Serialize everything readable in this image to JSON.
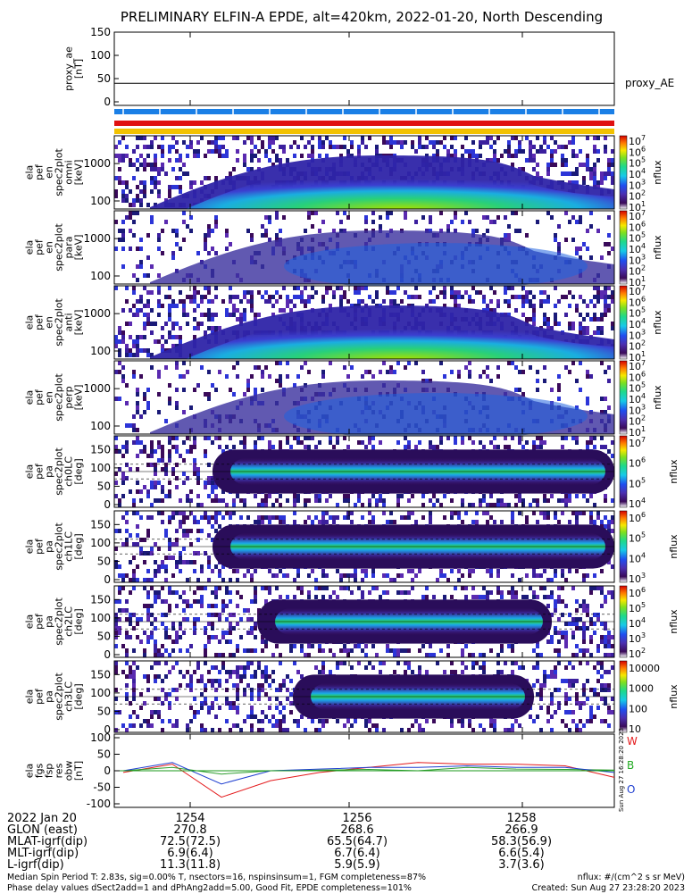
{
  "title": "PRELIMINARY ELFIN-A EPDE, alt=420km, 2022-01-20, North Descending",
  "colors": {
    "bar_blue": "#1a7fe6",
    "bar_red": "#e01010",
    "bar_yellow": "#f2c200",
    "curve_red": "#e41a1c",
    "curve_green": "#2e9e2e",
    "curve_blue": "#1f3fd0",
    "w_label": "#e41a1c",
    "b_label": "#22aa22",
    "o_label": "#1f3fd0"
  },
  "proxy_panel": {
    "ylabel_lines": [
      "proxy_ae",
      "[nT]"
    ],
    "yticks": [
      "150",
      "100",
      "50",
      "0"
    ],
    "legend": "proxy_AE",
    "value": 40
  },
  "spec_panels": [
    {
      "ylabel_lines": [
        "ela",
        "pef",
        "en",
        "spec2plot",
        "omni",
        "[keV]"
      ],
      "yticks": [
        "1000",
        "100"
      ],
      "cbar_ticks": [
        "10^7",
        "10^6",
        "10^5",
        "10^4",
        "10^3",
        "10^2",
        "10^1"
      ],
      "cbar_label": "nflux"
    },
    {
      "ylabel_lines": [
        "ela",
        "pef",
        "en",
        "spec2plot",
        "para",
        "[keV]"
      ],
      "yticks": [
        "1000",
        "100"
      ],
      "cbar_ticks": [
        "10^7",
        "10^6",
        "10^5",
        "10^4",
        "10^3",
        "10^2",
        "10^1"
      ],
      "cbar_label": "nflux"
    },
    {
      "ylabel_lines": [
        "ela",
        "pef",
        "en",
        "spec2plot",
        "anti",
        "[keV]"
      ],
      "yticks": [
        "1000",
        "100"
      ],
      "cbar_ticks": [
        "10^7",
        "10^6",
        "10^5",
        "10^4",
        "10^3",
        "10^2",
        "10^1"
      ],
      "cbar_label": "nflux"
    },
    {
      "ylabel_lines": [
        "ela",
        "pef",
        "en",
        "spec2plot",
        "perp",
        "[keV]"
      ],
      "yticks": [
        "1000",
        "100"
      ],
      "cbar_ticks": [
        "10^7",
        "10^6",
        "10^5",
        "10^4",
        "10^3",
        "10^2",
        "10^1"
      ],
      "cbar_label": "nflux"
    }
  ],
  "pa_panels": [
    {
      "ylabel_lines": [
        "ela",
        "pef",
        "pa",
        "spec2plot",
        "ch0LC",
        "[deg]"
      ],
      "yticks": [
        "150",
        "100",
        "50",
        "0"
      ],
      "cbar_ticks": [
        "10^7",
        "10^6",
        "10^5",
        "10^4"
      ],
      "cbar_label": "nflux"
    },
    {
      "ylabel_lines": [
        "ela",
        "pef",
        "pa",
        "spec2plot",
        "ch1LC",
        "[deg]"
      ],
      "yticks": [
        "150",
        "100",
        "50",
        "0"
      ],
      "cbar_ticks": [
        "10^6",
        "10^5",
        "10^4",
        "10^3"
      ],
      "cbar_label": "nflux"
    },
    {
      "ylabel_lines": [
        "ela",
        "pef",
        "pa",
        "spec2plot",
        "ch2LC",
        "[deg]"
      ],
      "yticks": [
        "150",
        "100",
        "50",
        "0"
      ],
      "cbar_ticks": [
        "10^6",
        "10^5",
        "10^4",
        "10^3",
        "10^2"
      ],
      "cbar_label": "nflux"
    },
    {
      "ylabel_lines": [
        "ela",
        "pef",
        "pa",
        "spec2plot",
        "ch3LC",
        "[deg]"
      ],
      "yticks": [
        "150",
        "100",
        "50",
        "0"
      ],
      "cbar_ticks": [
        "10000",
        "1000",
        "100",
        "10"
      ],
      "cbar_label": "nflux"
    }
  ],
  "field_panel": {
    "ylabel_lines": [
      "ela",
      "fgs",
      "fsp",
      "res",
      "obw",
      "[nT]"
    ],
    "yticks": [
      "100",
      "50",
      "0",
      "-50",
      "-100"
    ],
    "legend": [
      "W",
      "B",
      "O"
    ],
    "side_note": "Sun Aug 27 16:28:20 2023"
  },
  "chart_data": {
    "type": "line",
    "title": "PRELIMINARY ELFIN-A EPDE, alt=420km, 2022-01-20, North Descending",
    "x_tick_labels": [
      "1254",
      "1256",
      "1258"
    ],
    "xlim": [
      "12:52:40",
      "12:59:30"
    ],
    "series": [
      {
        "name": "proxy_AE",
        "x": [
          "12:52:40",
          "12:59:30"
        ],
        "values": [
          40,
          40
        ],
        "ylim": [
          0,
          150
        ]
      },
      {
        "name": "W",
        "x": [
          0,
          10,
          20,
          30,
          40,
          50,
          60,
          70,
          80,
          90,
          100
        ],
        "values": [
          -5,
          20,
          -80,
          -30,
          -5,
          10,
          25,
          20,
          20,
          15,
          -20
        ],
        "ylim": [
          -100,
          100
        ]
      },
      {
        "name": "B",
        "x": [
          0,
          10,
          20,
          30,
          40,
          50,
          60,
          70,
          80,
          90,
          100
        ],
        "values": [
          0,
          10,
          -10,
          0,
          2,
          4,
          0,
          10,
          5,
          4,
          2
        ]
      },
      {
        "name": "O",
        "x": [
          0,
          10,
          20,
          30,
          40,
          50,
          60,
          70,
          80,
          90,
          100
        ],
        "values": [
          0,
          25,
          -40,
          0,
          5,
          10,
          10,
          15,
          10,
          10,
          -5
        ]
      }
    ]
  },
  "footer": {
    "rows": [
      {
        "label": "2022 Jan 20",
        "values": [
          "1254",
          "1256",
          "1258"
        ]
      },
      {
        "label": "GLON (east)",
        "values": [
          "270.8",
          "268.6",
          "266.9"
        ]
      },
      {
        "label": "MLAT-igrf(dip)",
        "values": [
          "72.5(72.5)",
          "65.5(64.7)",
          "58.3(56.9)"
        ]
      },
      {
        "label": "MLT-igrf(dip)",
        "values": [
          "6.9(6.4)",
          "6.7(6.4)",
          "6.6(5.4)"
        ]
      },
      {
        "label": "L-igrf(dip)",
        "values": [
          "11.3(11.8)",
          "5.9(5.9)",
          "3.7(3.6)"
        ]
      }
    ],
    "note1": "Median Spin Period T: 2.83s, sig=0.00% T, nsectors=16, nspinsinsum=1, FGM completeness=87%",
    "note2": "Phase delay values dSect2add=1 and dPhAng2add=5.00, Good Fit, EPDE completeness=101%",
    "units": "nflux: #/(cm^2 s sr MeV)",
    "created": "Created: Sun Aug 27 23:28:20 2023"
  }
}
